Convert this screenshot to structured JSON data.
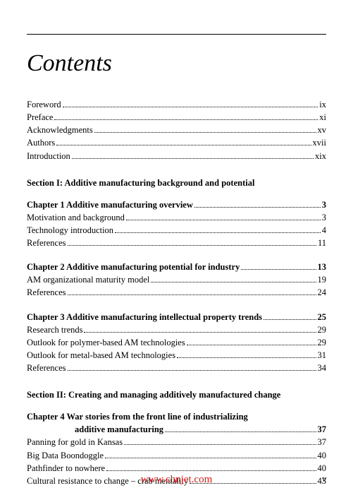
{
  "title": "Contents",
  "front": [
    {
      "label": "Foreword",
      "page": "ix"
    },
    {
      "label": "Preface",
      "page": "xi"
    },
    {
      "label": "Acknowledgments",
      "page": "xv"
    },
    {
      "label": "Authors",
      "page": "xvii"
    },
    {
      "label": "Introduction",
      "page": "xix"
    }
  ],
  "section1": {
    "heading": "Section I:  Additive manufacturing background and potential",
    "ch1": {
      "label": "Chapter 1    Additive manufacturing overview",
      "page": "3"
    },
    "ch1_items": [
      {
        "label": "Motivation and background",
        "page": "3"
      },
      {
        "label": "Technology introduction",
        "page": "4"
      },
      {
        "label": "References",
        "page": "11"
      }
    ],
    "ch2": {
      "label": "Chapter 2    Additive manufacturing potential for industry",
      "page": "13"
    },
    "ch2_items": [
      {
        "label": "AM organizational maturity model",
        "page": "19"
      },
      {
        "label": "References",
        "page": "24"
      }
    ],
    "ch3": {
      "label": "Chapter 3    Additive manufacturing intellectual property trends",
      "page": "25"
    },
    "ch3_items": [
      {
        "label": "Research trends",
        "page": "29"
      },
      {
        "label": "Outlook for polymer-based AM technologies",
        "page": "29"
      },
      {
        "label": "Outlook for metal-based AM technologies",
        "page": "31"
      },
      {
        "label": "References",
        "page": "34"
      }
    ]
  },
  "section2": {
    "heading": "Section II:  Creating and managing additively manufactured change",
    "ch4_line1": "Chapter 4    War stories from the front line of industrializing",
    "ch4_line2": "additive manufacturing",
    "ch4_page": "37",
    "ch4_items": [
      {
        "label": "Panning for gold in Kansas",
        "page": "37"
      },
      {
        "label": "Big Data Boondoggle",
        "page": "40"
      },
      {
        "label": "Pathfinder to nowhere",
        "page": "40"
      },
      {
        "label": "Cultural resistance to change – crab mentality",
        "page": "43"
      }
    ]
  },
  "watermark": "www.chnjet.com",
  "pagenum": "v"
}
